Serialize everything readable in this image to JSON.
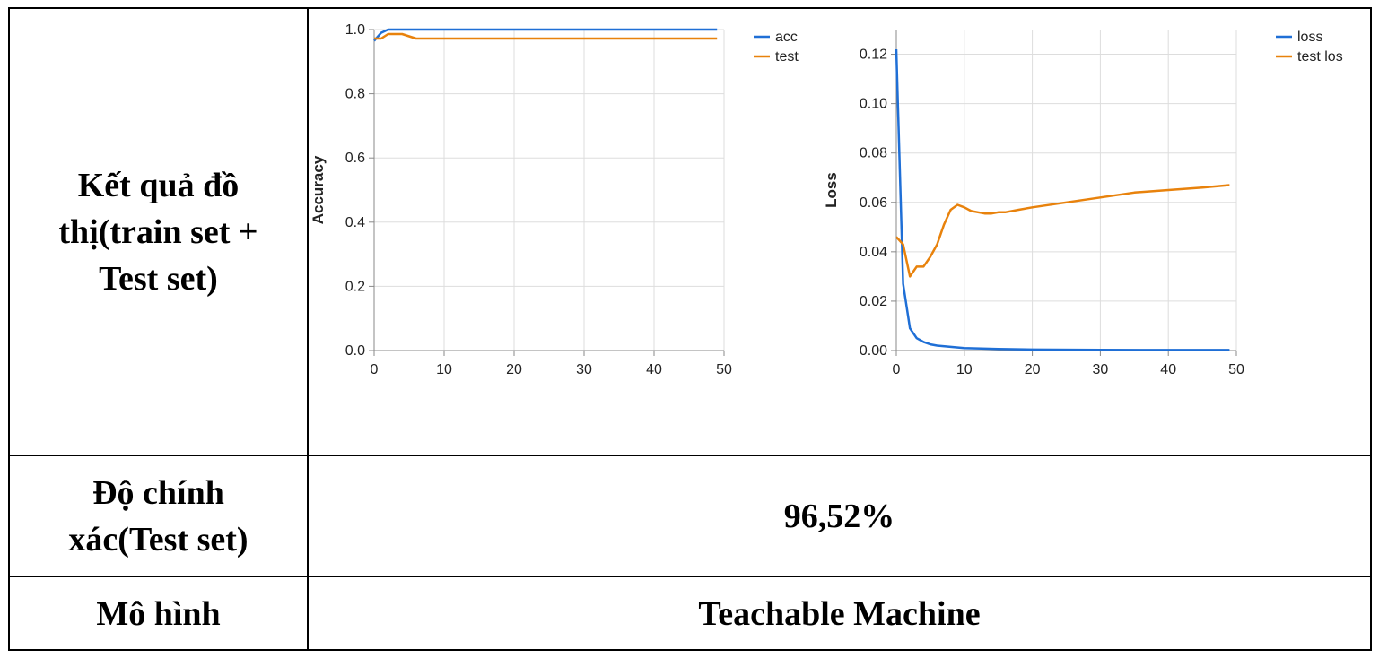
{
  "table": {
    "rows": [
      {
        "label": "Kết quả đồ thị(train set + Test set)",
        "value": ""
      },
      {
        "label": "Độ chính xác(Test set)",
        "value": "96,52%"
      },
      {
        "label": "Mô hình",
        "value": "Teachable Machine"
      }
    ]
  },
  "colors": {
    "blue": "#1f6fd6",
    "orange": "#e8820c",
    "grid": "#dddddd",
    "axis": "#888888"
  },
  "chart_data": [
    {
      "type": "line",
      "title": "",
      "xlabel": "",
      "ylabel": "Accuracy",
      "xlim": [
        0,
        50
      ],
      "ylim": [
        0,
        1.0
      ],
      "xticks": [
        "0",
        "10",
        "20",
        "30",
        "40",
        "50"
      ],
      "yticks": [
        "0.0",
        "0.2",
        "0.4",
        "0.6",
        "0.8",
        "1.0"
      ],
      "grid": true,
      "legend_position": "top-right",
      "series": [
        {
          "name": "acc",
          "color": "#1f6fd6",
          "x": [
            0,
            1,
            2,
            3,
            4,
            5,
            10,
            20,
            30,
            40,
            49
          ],
          "y": [
            0.965,
            0.99,
            1.0,
            1.0,
            1.0,
            1.0,
            1.0,
            1.0,
            1.0,
            1.0,
            1.0
          ]
        },
        {
          "name": "test",
          "color": "#e8820c",
          "x": [
            0,
            1,
            2,
            3,
            4,
            5,
            6,
            10,
            20,
            30,
            40,
            49
          ],
          "y": [
            0.972,
            0.972,
            0.986,
            0.986,
            0.986,
            0.979,
            0.972,
            0.972,
            0.972,
            0.972,
            0.972,
            0.972
          ]
        }
      ]
    },
    {
      "type": "line",
      "title": "",
      "xlabel": "",
      "ylabel": "Loss",
      "xlim": [
        0,
        50
      ],
      "ylim": [
        0,
        0.13
      ],
      "xticks": [
        "0",
        "10",
        "20",
        "30",
        "40",
        "50"
      ],
      "yticks": [
        "0.00",
        "0.02",
        "0.04",
        "0.06",
        "0.08",
        "0.10",
        "0.12"
      ],
      "grid": true,
      "legend_position": "top-right",
      "series": [
        {
          "name": "loss",
          "color": "#1f6fd6",
          "x": [
            0,
            1,
            2,
            3,
            4,
            5,
            6,
            8,
            10,
            15,
            20,
            30,
            40,
            49
          ],
          "y": [
            0.122,
            0.027,
            0.009,
            0.005,
            0.0035,
            0.0025,
            0.002,
            0.0015,
            0.001,
            0.0006,
            0.0004,
            0.0003,
            0.0002,
            0.0002
          ]
        },
        {
          "name": "test los",
          "color": "#e8820c",
          "x": [
            0,
            1,
            2,
            3,
            4,
            5,
            6,
            7,
            8,
            9,
            10,
            11,
            12,
            13,
            14,
            15,
            16,
            18,
            20,
            25,
            30,
            35,
            40,
            45,
            49
          ],
          "y": [
            0.046,
            0.043,
            0.03,
            0.034,
            0.034,
            0.038,
            0.043,
            0.051,
            0.057,
            0.059,
            0.058,
            0.0565,
            0.056,
            0.0555,
            0.0555,
            0.056,
            0.056,
            0.057,
            0.058,
            0.06,
            0.062,
            0.064,
            0.065,
            0.066,
            0.067
          ]
        }
      ]
    }
  ]
}
